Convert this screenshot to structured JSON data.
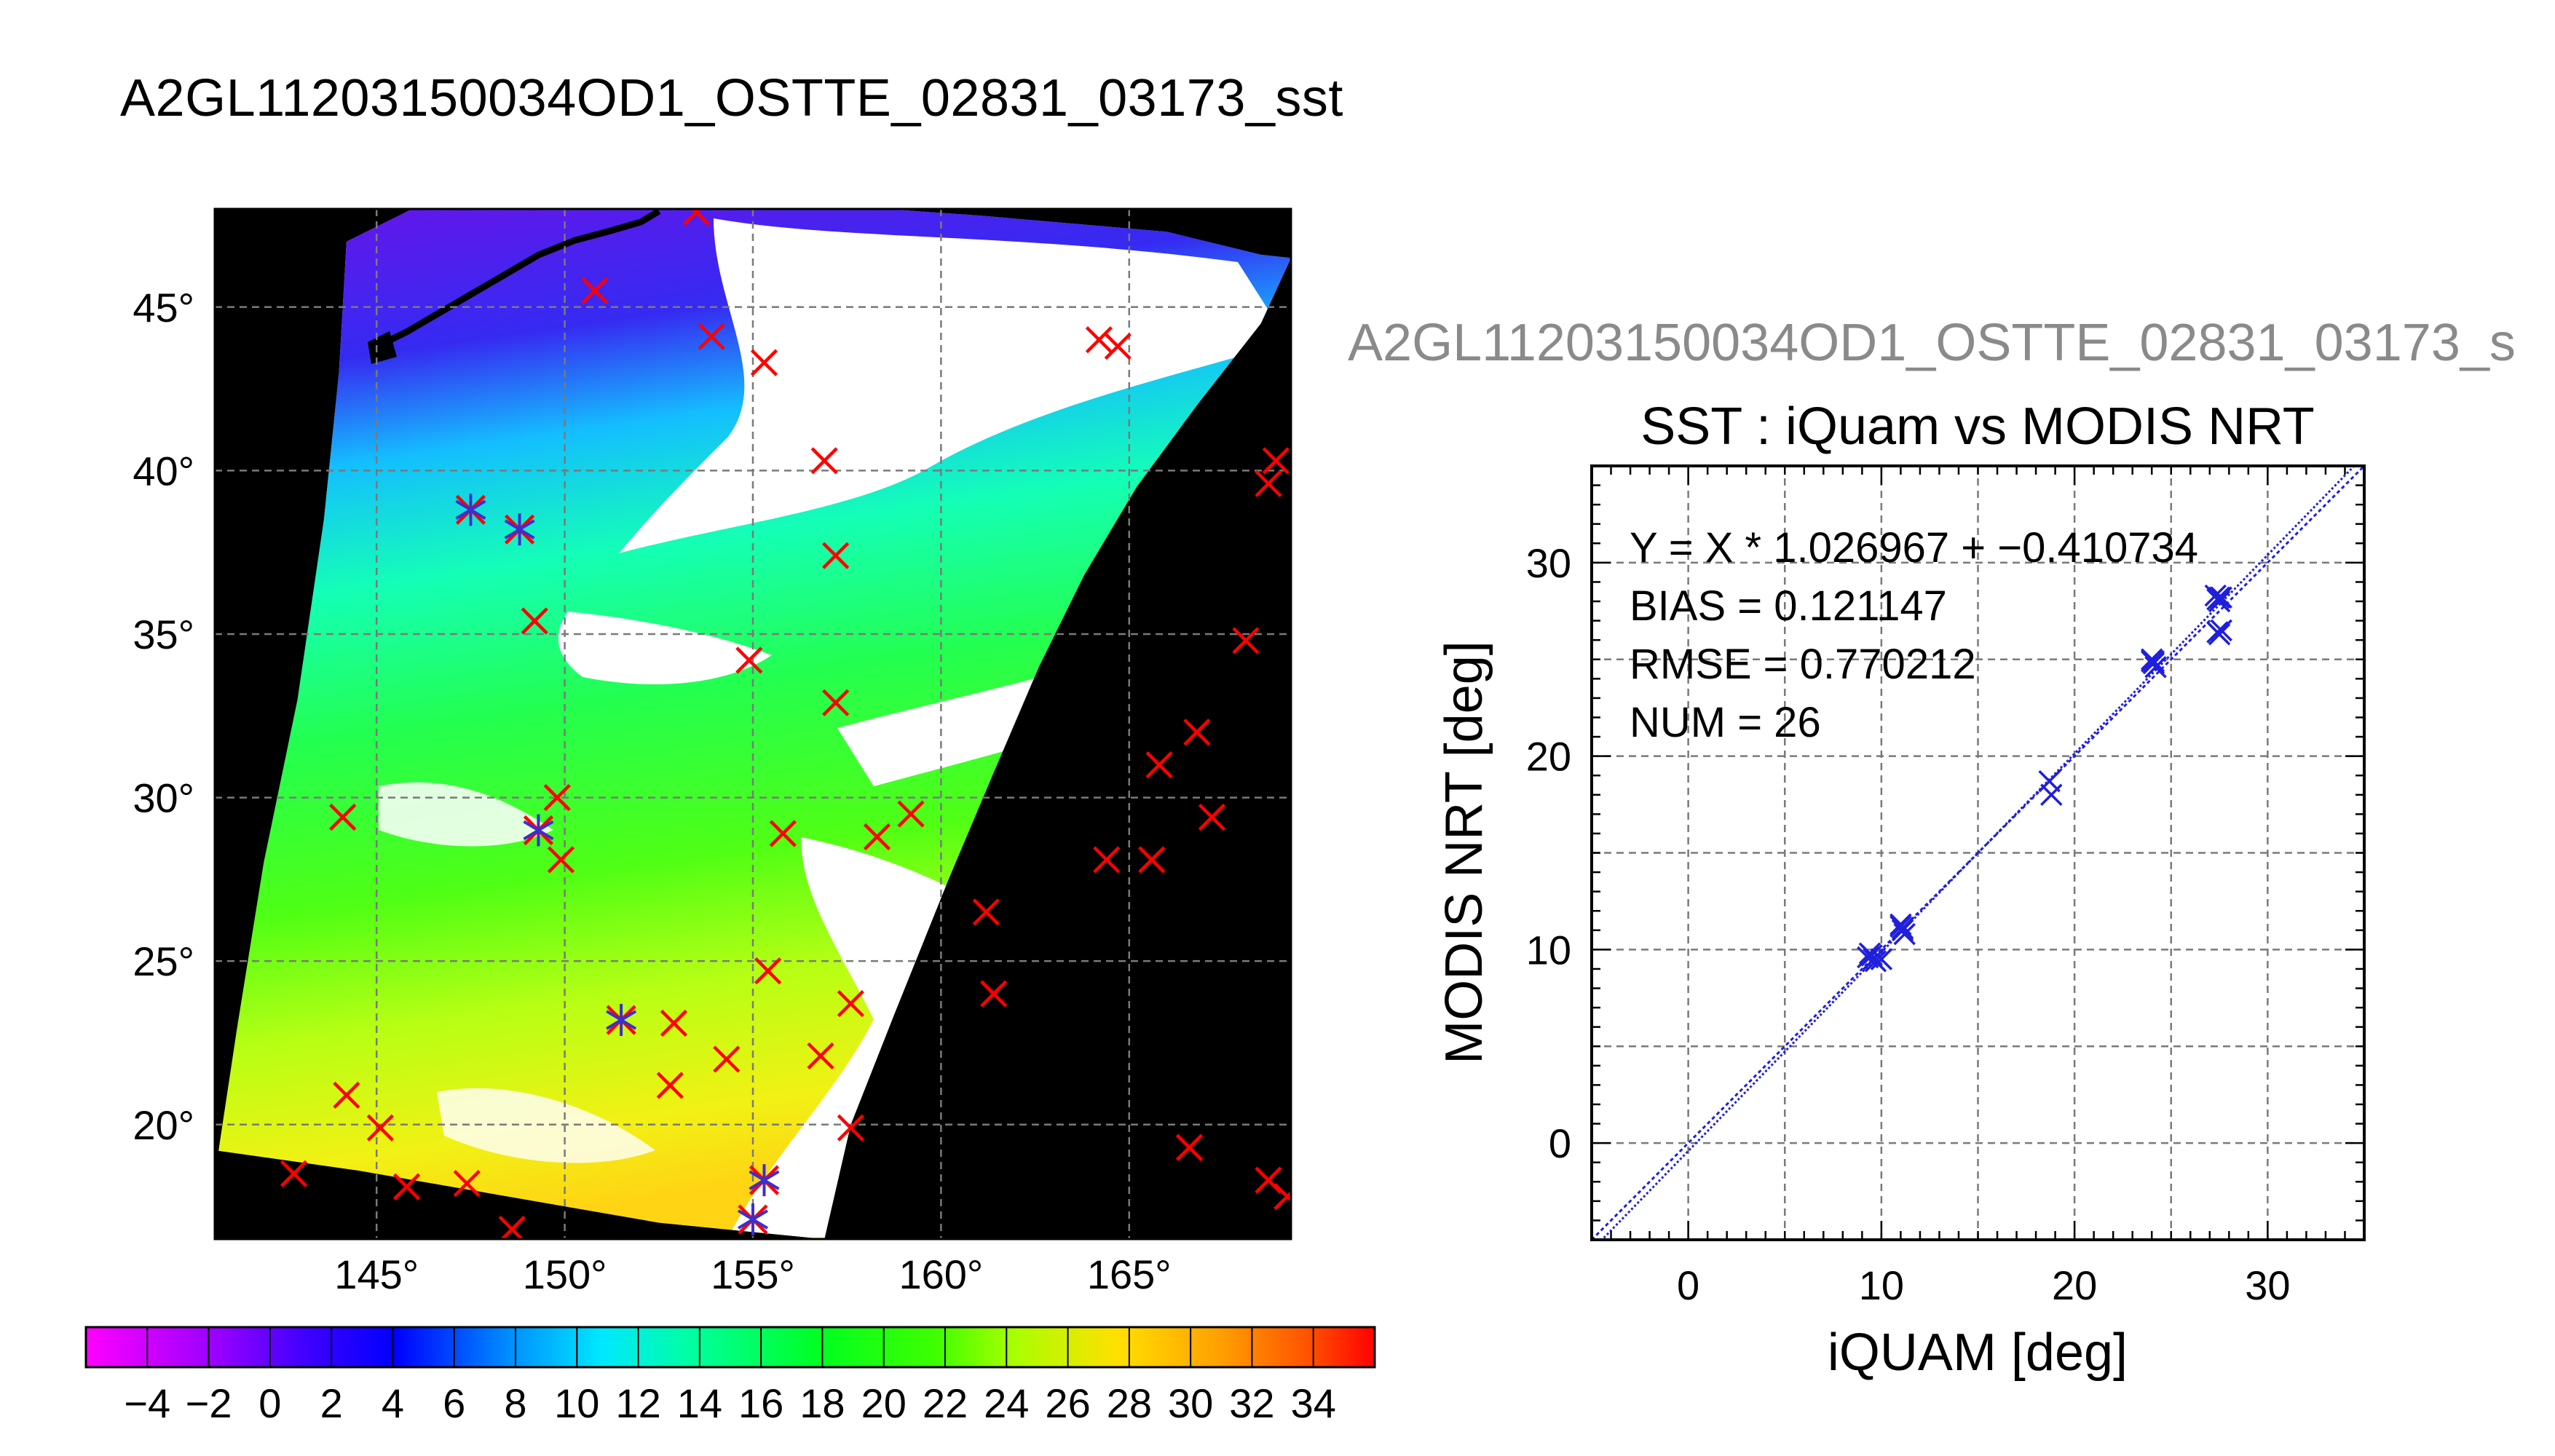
{
  "page_title": "A2GL11203150034OD1_OSTTE_02831_03173_sst",
  "map": {
    "lat_ticks": [
      45,
      40,
      35,
      30,
      25,
      20
    ],
    "lon_ticks": [
      145,
      150,
      155,
      160,
      165
    ],
    "lat_range": [
      16.5,
      48.0
    ],
    "lon_range": [
      140.7,
      169.3
    ],
    "degree_symbol": "°",
    "colorbar_labels": [
      "−4",
      "−2",
      "0",
      "2",
      "4",
      "6",
      "8",
      "10",
      "12",
      "14",
      "16",
      "18",
      "20",
      "22",
      "24",
      "26",
      "28",
      "30",
      "32",
      "34"
    ],
    "colorbar_range": [
      -6,
      36
    ],
    "colors": {
      "background": "#000000",
      "cloud": "#ffffff",
      "marker_red": "#ff0000",
      "marker_match": "#3a2fd0"
    }
  },
  "chart_data": {
    "type": "scatter",
    "overlay_title": "A2GL11203150034OD1_OSTTE_02831_03173_s",
    "title": "SST : iQuam vs MODIS NRT",
    "xlabel": "iQUAM [deg]",
    "ylabel": "MODIS NRT [deg]",
    "xlim": [
      -5,
      35
    ],
    "ylim": [
      -5,
      35
    ],
    "xticks": [
      0,
      10,
      20,
      30
    ],
    "yticks": [
      0,
      10,
      20,
      30
    ],
    "grid": true,
    "annotations": [
      "Y = X * 1.026967 + −0.410734",
      "BIAS = 0.121147",
      "RMSE = 0.770212",
      "NUM = 26"
    ],
    "regression": {
      "slope": 1.026967,
      "intercept": -0.410734
    },
    "series": [
      {
        "marker": "x",
        "color": "#1f1fdc",
        "points": [
          [
            9.3,
            9.6
          ],
          [
            9.7,
            9.4
          ],
          [
            9.5,
            9.7
          ],
          [
            10.0,
            9.5
          ],
          [
            9.4,
            9.8
          ],
          [
            11.0,
            11.2
          ],
          [
            11.2,
            10.8
          ],
          [
            11.1,
            11.0
          ],
          [
            11.0,
            11.3
          ],
          [
            18.7,
            18.7
          ],
          [
            18.8,
            18.0
          ],
          [
            24.0,
            25.0
          ],
          [
            24.1,
            24.8
          ],
          [
            24.2,
            24.6
          ],
          [
            24.0,
            24.9
          ],
          [
            27.3,
            28.3
          ],
          [
            27.5,
            28.0
          ],
          [
            27.6,
            28.2
          ],
          [
            27.4,
            28.1
          ],
          [
            27.5,
            26.3
          ],
          [
            27.6,
            26.5
          ],
          [
            27.4,
            26.4
          ],
          [
            27.5,
            28.2
          ],
          [
            9.6,
            9.5
          ],
          [
            11.1,
            11.1
          ],
          [
            24.1,
            24.9
          ]
        ]
      }
    ]
  }
}
